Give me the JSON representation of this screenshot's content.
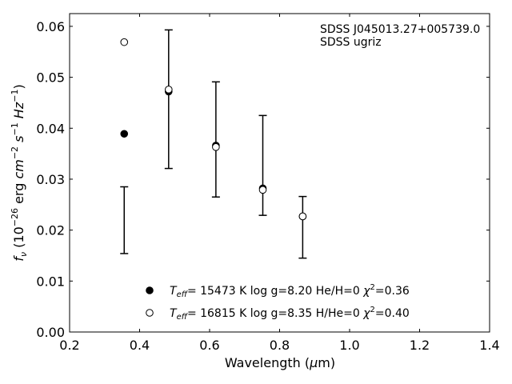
{
  "chart_data": {
    "type": "scatter",
    "xlabel": "Wavelength (μm)",
    "ylabel": "fν (10⁻²⁶ erg cm⁻² s⁻¹ Hz⁻¹)",
    "xlim": [
      0.2,
      1.4
    ],
    "ylim": [
      0.0,
      0.0625
    ],
    "xticks": [
      "0.2",
      "0.4",
      "0.6",
      "0.8",
      "1.0",
      "1.2",
      "1.4"
    ],
    "yticks": [
      "0.00",
      "0.01",
      "0.02",
      "0.03",
      "0.04",
      "0.05",
      "0.06"
    ],
    "grid": false,
    "annotations": [
      "SDSS J045013.27+005739.0",
      "SDSS ugriz"
    ],
    "observed": {
      "x": [
        0.356,
        0.483,
        0.618,
        0.752,
        0.866
      ],
      "y": [
        0.0219,
        0.0457,
        0.0378,
        0.0328,
        0.0205
      ],
      "err_low": [
        0.0154,
        0.0321,
        0.0265,
        0.0229,
        0.0145
      ],
      "err_high": [
        0.0285,
        0.0593,
        0.0491,
        0.0425,
        0.0266
      ]
    },
    "series": [
      {
        "name": "T_eff= 15473 K  log g=8.20  He/H=0  χ²=0.36",
        "marker": "filled-circle",
        "x": [
          0.356,
          0.483,
          0.618,
          0.752,
          0.866
        ],
        "y": [
          0.0389,
          0.0472,
          0.0366,
          0.0282,
          0.0227
        ]
      },
      {
        "name": "T_eff= 16815 K  log g=8.35  H/He=0  χ²=0.40",
        "marker": "open-circle",
        "x": [
          0.356,
          0.483,
          0.618,
          0.752,
          0.866
        ],
        "y": [
          0.0569,
          0.0476,
          0.0363,
          0.0279,
          0.0227
        ]
      }
    ],
    "legend_position": "bottom-center"
  }
}
